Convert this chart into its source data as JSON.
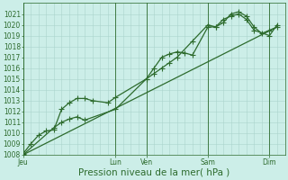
{
  "xlabel": "Pression niveau de la mer( hPa )",
  "bg_color": "#cceee8",
  "grid_color": "#aad4cc",
  "line_color": "#2d6b2d",
  "ylim": [
    1008,
    1022
  ],
  "ytick_min": 1008,
  "ytick_max": 1021,
  "day_labels": [
    "Jeu",
    "Lun",
    "Ven",
    "Sam",
    "Dim"
  ],
  "day_positions": [
    0,
    12,
    16,
    24,
    32
  ],
  "xlim": [
    0,
    34
  ],
  "series1_x": [
    0,
    1,
    2,
    3,
    4,
    5,
    6,
    7,
    8,
    9,
    11,
    12,
    16,
    17,
    18,
    19,
    20,
    21,
    22,
    24,
    25,
    26,
    27,
    28,
    29,
    30,
    31,
    32,
    33
  ],
  "series1_y": [
    1008.1,
    1009.0,
    1009.8,
    1010.2,
    1010.3,
    1012.2,
    1012.8,
    1013.2,
    1013.2,
    1013.0,
    1012.8,
    1013.3,
    1015.0,
    1016.0,
    1017.0,
    1017.3,
    1017.5,
    1017.4,
    1017.2,
    1019.8,
    1019.8,
    1020.2,
    1021.0,
    1021.2,
    1020.8,
    1019.8,
    1019.2,
    1019.5,
    1019.8
  ],
  "series2_x": [
    0,
    4,
    5,
    6,
    7,
    8,
    12,
    16,
    17,
    18,
    19,
    20,
    22,
    24,
    25,
    26,
    27,
    28,
    29,
    30,
    32,
    33
  ],
  "series2_y": [
    1008.0,
    1010.5,
    1011.0,
    1011.3,
    1011.5,
    1011.2,
    1012.2,
    1015.0,
    1015.5,
    1016.0,
    1016.5,
    1017.0,
    1018.5,
    1020.0,
    1019.8,
    1020.5,
    1020.8,
    1021.0,
    1020.5,
    1019.5,
    1019.0,
    1020.0
  ],
  "trend_x": [
    0,
    33
  ],
  "trend_y": [
    1008,
    1019.8
  ],
  "markersize": 2.5,
  "linewidth": 0.9,
  "tick_fontsize": 5.5,
  "label_fontsize": 7.5
}
